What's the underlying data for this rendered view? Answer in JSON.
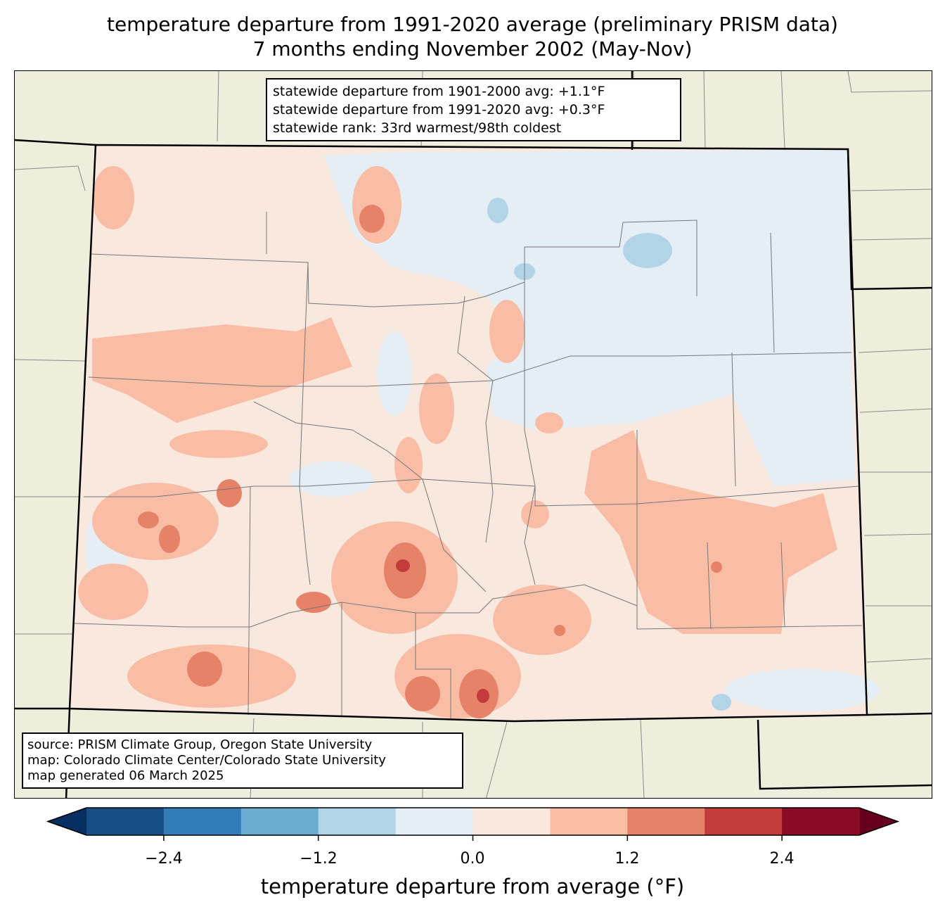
{
  "title": {
    "line1": "temperature departure from 1991-2020 average (preliminary PRISM data)",
    "line2": "7 months ending November 2002 (May-Nov)"
  },
  "info_box": {
    "line1": "statewide departure from 1901-2000 avg: +1.1°F",
    "line2": "statewide departure from 1991-2020 avg: +0.3°F",
    "line3": "statewide rank: 33rd warmest/98th coldest"
  },
  "source_box": {
    "line1": "source: PRISM Climate Group, Oregon State University",
    "line2": "map: Colorado Climate Center/Colorado State University",
    "line3": "map generated 06 March 2025"
  },
  "colorbar": {
    "label": "temperature departure from average (°F)",
    "ticks": [
      "−2.4",
      "−1.2",
      "0.0",
      "1.2",
      "2.4"
    ],
    "levels": [
      -3.0,
      -2.4,
      -1.8,
      -1.2,
      -0.6,
      0.0,
      0.6,
      1.2,
      1.8,
      2.4,
      3.0
    ],
    "colors": [
      "#164f86",
      "#327cb7",
      "#6bacd1",
      "#b1d5e7",
      "#e4eef4",
      "#f9e8de",
      "#f9bda5",
      "#e58268",
      "#c43b3c",
      "#8a0b25"
    ],
    "under_color": "#053061",
    "over_color": "#67001f"
  },
  "map_colors": {
    "background": "#efeedc",
    "state_base": "#f9e8de"
  }
}
